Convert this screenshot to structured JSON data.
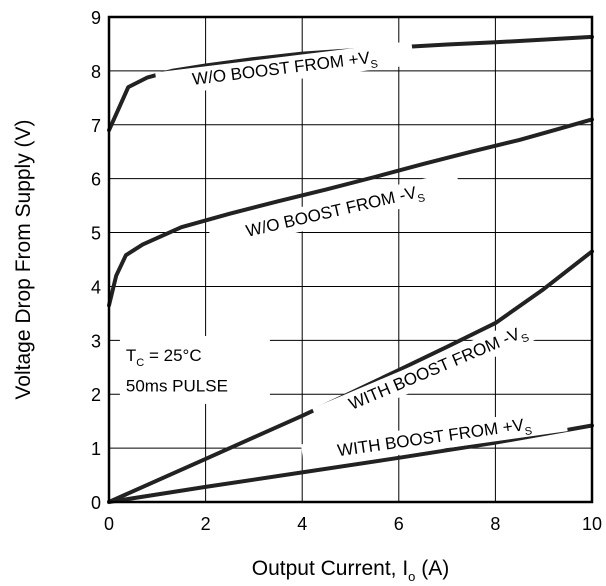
{
  "chart_data": {
    "type": "line",
    "title": "",
    "xlabel": "Output Current, I",
    "xlabel_sub": "o",
    "xlabel_unit": " (A)",
    "ylabel": "Voltage Drop From Supply (V)",
    "xlim": [
      0,
      10
    ],
    "ylim": [
      0,
      9
    ],
    "xticks": [
      "0",
      "2",
      "4",
      "6",
      "8",
      "10"
    ],
    "yticks": [
      "0",
      "1",
      "2",
      "3",
      "4",
      "5",
      "6",
      "7",
      "8",
      "9"
    ],
    "grid": true,
    "notes": {
      "line1_main": "T",
      "line1_sub": "C",
      "line1_rest": " = 25°C",
      "line2": "50ms PULSE"
    },
    "series": [
      {
        "label_main": "W/O BOOST FROM +V",
        "label_sub": "S",
        "x": [
          0,
          0.2,
          0.4,
          0.8,
          1.3,
          2.0,
          3.0,
          4.0,
          5.0,
          6.0,
          7.0,
          8.0,
          9.0,
          10.0
        ],
        "y": [
          6.9,
          7.3,
          7.7,
          7.88,
          8.0,
          8.1,
          8.22,
          8.32,
          8.38,
          8.44,
          8.49,
          8.53,
          8.58,
          8.63
        ]
      },
      {
        "label_main": "W/O BOOST FROM -V",
        "label_sub": "S",
        "x": [
          0,
          0.15,
          0.35,
          0.7,
          1.5,
          2.5,
          3.5,
          4.5,
          5.5,
          6.5,
          7.5,
          8.5,
          9.3,
          10.0
        ],
        "y": [
          3.65,
          4.2,
          4.58,
          4.78,
          5.1,
          5.35,
          5.58,
          5.8,
          6.03,
          6.27,
          6.5,
          6.72,
          6.92,
          7.1
        ]
      },
      {
        "label_main": "WITH BOOST FROM -V",
        "label_sub": "S",
        "x": [
          0,
          1,
          2,
          3,
          4,
          5,
          6,
          7,
          8,
          9,
          10
        ],
        "y": [
          0,
          0.4,
          0.8,
          1.2,
          1.6,
          2.02,
          2.45,
          2.88,
          3.32,
          3.95,
          4.65
        ]
      },
      {
        "label_main": "WITH BOOST FROM +V",
        "label_sub": "S",
        "x": [
          0,
          2,
          4,
          6,
          8,
          10
        ],
        "y": [
          0,
          0.28,
          0.55,
          0.82,
          1.1,
          1.42
        ]
      }
    ]
  }
}
